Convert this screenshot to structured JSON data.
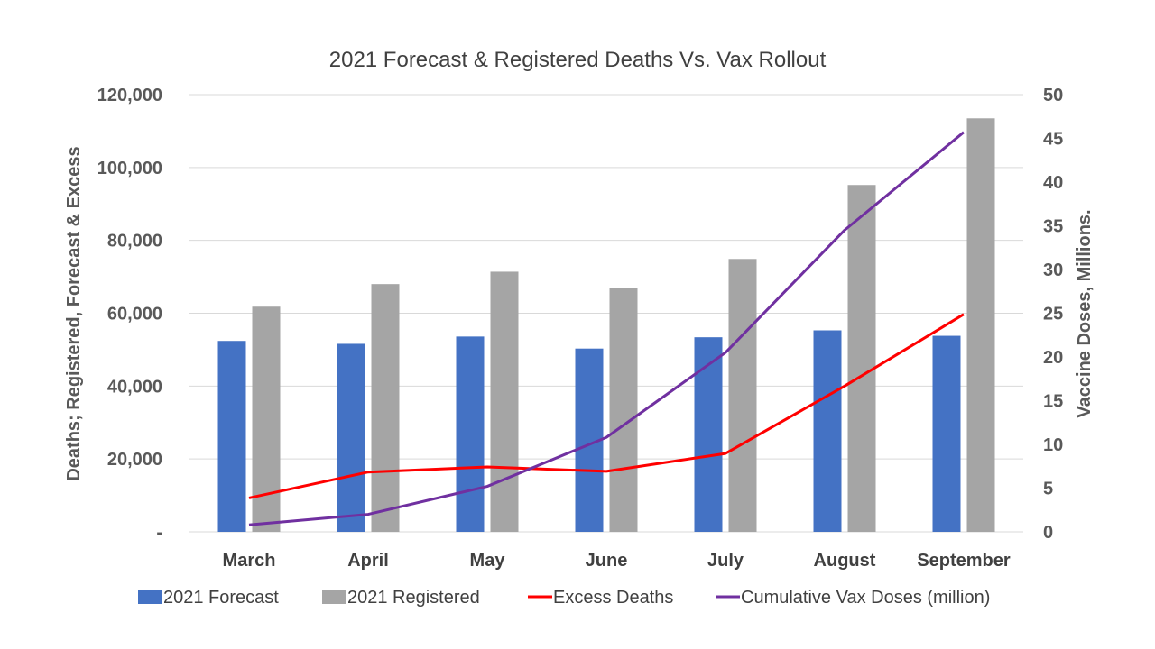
{
  "chart_data": {
    "type": "bar",
    "title": "2021 Forecast & Registered Deaths Vs. Vax Rollout",
    "categories": [
      "March",
      "April",
      "May",
      "June",
      "July",
      "August",
      "September"
    ],
    "ylabel": "Deaths; Registered, Forecast & Excess",
    "y2label": "Vaccine Doses, Millions.",
    "ylim": [
      0,
      120000
    ],
    "y2lim": [
      0,
      50
    ],
    "yticks": [
      "-",
      "20,000",
      "40,000",
      "60,000",
      "80,000",
      "100,000",
      "120,000"
    ],
    "y2ticks": [
      "0",
      "5",
      "10",
      "15",
      "20",
      "25",
      "30",
      "35",
      "40",
      "45",
      "50"
    ],
    "grid": true,
    "legend_position": "bottom",
    "series": [
      {
        "name": "2021 Forecast",
        "kind": "bar",
        "axis": "left",
        "color": "#4472c4",
        "values": [
          52400,
          51600,
          53600,
          50300,
          53400,
          55300,
          53800
        ]
      },
      {
        "name": "2021 Registered",
        "kind": "bar",
        "axis": "left",
        "color": "#a5a5a5",
        "values": [
          61800,
          68000,
          71400,
          67000,
          74900,
          95200,
          113500
        ]
      },
      {
        "name": "Excess Deaths",
        "kind": "line",
        "axis": "left",
        "color": "#ff0000",
        "values": [
          9300,
          16400,
          17800,
          16600,
          21500,
          40000,
          59700
        ]
      },
      {
        "name": "Cumulative Vax Doses (million)",
        "kind": "line",
        "axis": "right",
        "color": "#7030a0",
        "values": [
          0.8,
          2.0,
          5.2,
          10.8,
          20.5,
          34.5,
          45.7
        ]
      }
    ]
  }
}
